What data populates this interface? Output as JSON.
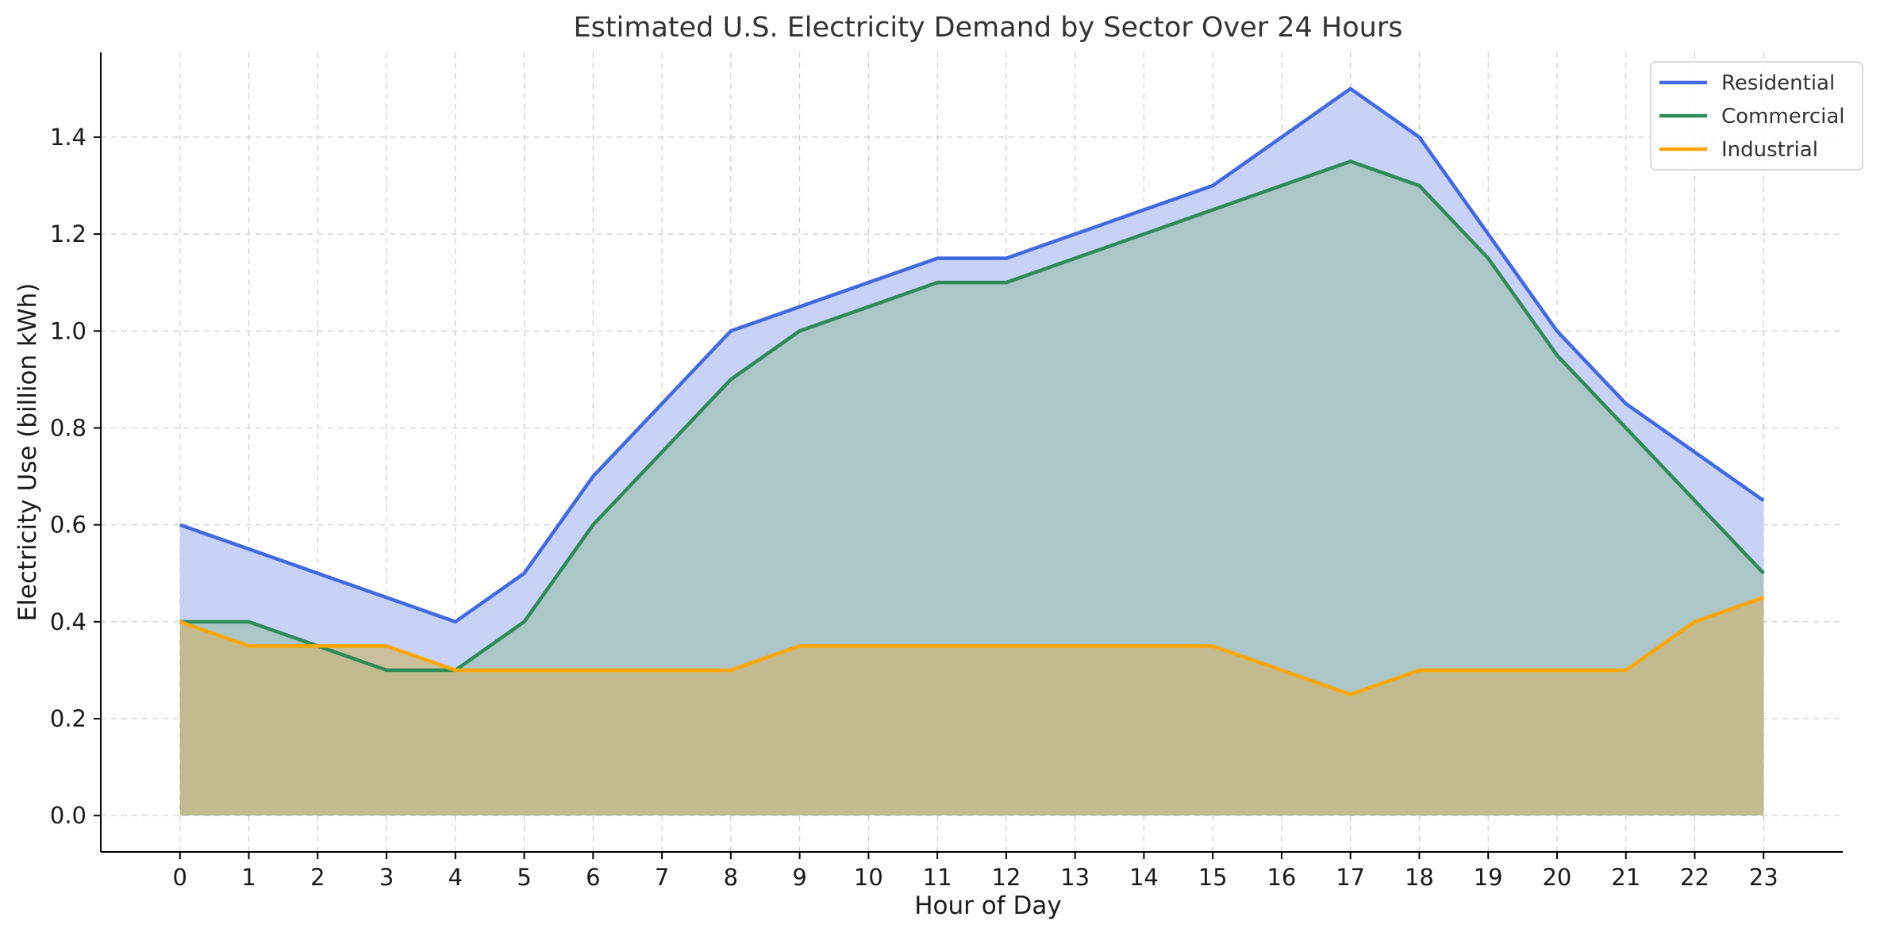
{
  "chart_data": {
    "type": "area",
    "title": "Estimated U.S. Electricity Demand by Sector Over 24 Hours",
    "xlabel": "Hour of Day",
    "ylabel": "Electricity Use (billion kWh)",
    "x": [
      0,
      1,
      2,
      3,
      4,
      5,
      6,
      7,
      8,
      9,
      10,
      11,
      12,
      13,
      14,
      15,
      16,
      17,
      18,
      19,
      20,
      21,
      22,
      23
    ],
    "xlim": [
      -1.15,
      24.15
    ],
    "ylim": [
      -0.075,
      1.575
    ],
    "yticks": [
      0.0,
      0.2,
      0.4,
      0.6,
      0.8,
      1.0,
      1.2,
      1.4
    ],
    "grid": true,
    "legend_position": "top-right",
    "series": [
      {
        "name": "Residential",
        "color": "#4169E1",
        "fill": "#C8D2F7",
        "values": [
          0.6,
          0.55,
          0.5,
          0.45,
          0.4,
          0.5,
          0.7,
          0.85,
          1.0,
          1.05,
          1.1,
          1.15,
          1.15,
          1.2,
          1.25,
          1.3,
          1.4,
          1.5,
          1.4,
          1.2,
          1.0,
          0.85,
          0.75,
          0.65
        ]
      },
      {
        "name": "Commercial",
        "color": "#2E8B57",
        "fill": "#9FC0B3",
        "values": [
          0.4,
          0.4,
          0.35,
          0.3,
          0.3,
          0.4,
          0.6,
          0.75,
          0.9,
          1.0,
          1.05,
          1.1,
          1.1,
          1.15,
          1.2,
          1.25,
          1.3,
          1.35,
          1.3,
          1.15,
          0.95,
          0.8,
          0.65,
          0.5
        ]
      },
      {
        "name": "Industrial",
        "color": "#FFA500",
        "fill": "#C9B77A",
        "values": [
          0.4,
          0.35,
          0.35,
          0.35,
          0.3,
          0.3,
          0.3,
          0.3,
          0.3,
          0.35,
          0.35,
          0.35,
          0.35,
          0.35,
          0.35,
          0.35,
          0.3,
          0.25,
          0.3,
          0.3,
          0.3,
          0.3,
          0.4,
          0.45
        ]
      }
    ]
  }
}
